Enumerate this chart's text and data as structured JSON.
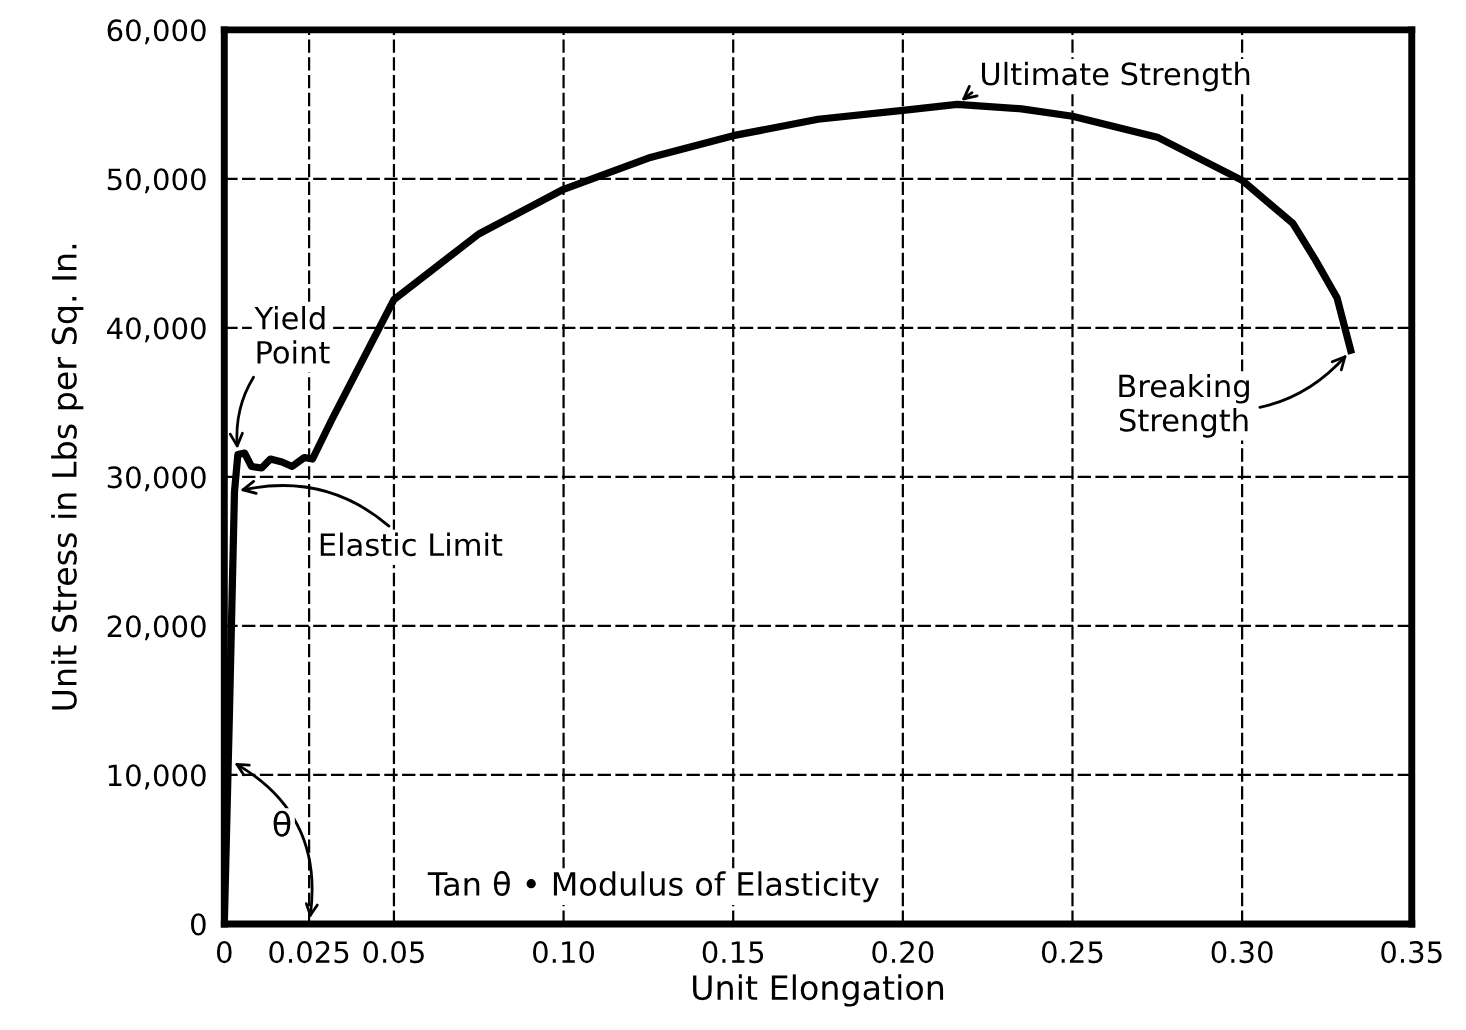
{
  "chart_data": {
    "type": "line",
    "xlabel": "Unit Elongation",
    "ylabel": "Unit Stress in Lbs per Sq. In.",
    "x": [
      0,
      0.0015,
      0.003,
      0.004,
      0.006,
      0.008,
      0.011,
      0.0136,
      0.017,
      0.02,
      0.0236,
      0.026,
      0.0316,
      0.04,
      0.05,
      0.075,
      0.1,
      0.125,
      0.15,
      0.175,
      0.2,
      0.216,
      0.235,
      0.25,
      0.275,
      0.3,
      0.315,
      0.3215,
      0.328,
      0.332
    ],
    "series": [
      {
        "color": "#000000",
        "values": [
          0,
          14000,
          29000,
          31500,
          31600,
          30700,
          30600,
          31200,
          31000,
          30700,
          31300,
          31200,
          33800,
          37500,
          41900,
          46300,
          49300,
          51400,
          52900,
          54000,
          54600,
          55000,
          54700,
          54200,
          52800,
          49900,
          47000,
          44600,
          42000,
          38500
        ]
      }
    ],
    "xlim": [
      0,
      0.35
    ],
    "xticks": [
      0,
      0.025,
      0.05,
      {
        "value": 0.1,
        "label": "0.10"
      },
      0.15,
      {
        "value": 0.2,
        "label": "0.20"
      },
      0.25,
      {
        "value": 0.3,
        "label": "0.30"
      },
      0.35
    ],
    "ylim": [
      0,
      60000
    ],
    "yticks": [
      0,
      {
        "value": 10000,
        "label": "10,000"
      },
      {
        "value": 20000,
        "label": "20,000"
      },
      {
        "value": 30000,
        "label": "30,000"
      },
      {
        "value": 40000,
        "label": "40,000"
      },
      {
        "value": 50000,
        "label": "50,000"
      },
      {
        "value": 60000,
        "label": "60,000"
      }
    ],
    "grid": true,
    "line_style": "solid",
    "marker": "none",
    "annotations": [
      {
        "text": "Yield\nPoint",
        "x": 0.004,
        "y": 31500
      },
      {
        "text": "Elastic Limit",
        "x": 0.003,
        "y": 29000
      },
      {
        "text": "Ultimate Strength",
        "x": 0.216,
        "y": 55000
      },
      {
        "text": "Breaking\nStrength",
        "x": 0.332,
        "y": 38500
      },
      "θ",
      "Tan θ • Modulus of Elasticity"
    ]
  }
}
